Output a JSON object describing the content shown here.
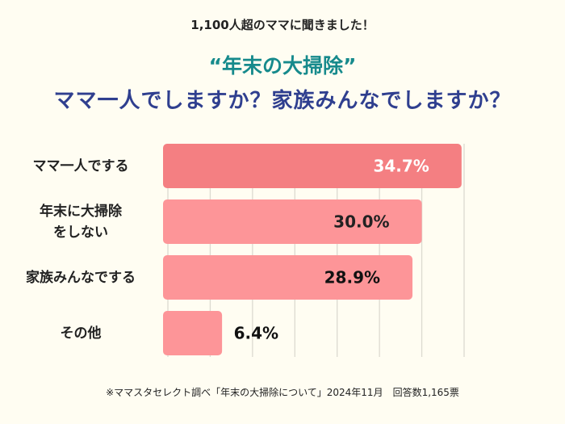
{
  "header": {
    "intro": "1,100人超のママに聞きました！",
    "title": "“年末の大掃除”",
    "question": "ママ一人でしますか？家族みんなでしますか？"
  },
  "chart_data": {
    "type": "bar",
    "orientation": "horizontal",
    "categories": [
      "ママ一人でする",
      "年末に大掃除\nをしない",
      "家族みんなでする",
      "その他"
    ],
    "values": [
      34.7,
      30.0,
      28.9,
      6.4
    ],
    "data_labels": [
      "34.7%",
      "30.0%",
      "28.9%",
      "6.4%"
    ],
    "xlim": [
      0,
      35
    ],
    "grid": true,
    "colors": [
      "#f47f82",
      "#fd9598",
      "#fd9598",
      "#fd9598"
    ],
    "label_colors": [
      "#ffffff",
      "#222222",
      "#111111",
      "#111111"
    ]
  },
  "footer": {
    "note": "※ママスタセレクト調べ「年末の大掃除について」2024年11月　回答数1,165票"
  }
}
